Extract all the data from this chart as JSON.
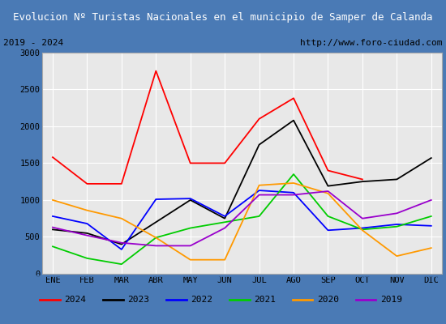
{
  "title": "Evolucion Nº Turistas Nacionales en el municipio de Samper de Calanda",
  "subtitle_left": "2019 - 2024",
  "subtitle_right": "http://www.foro-ciudad.com",
  "months": [
    "ENE",
    "FEB",
    "MAR",
    "ABR",
    "MAY",
    "JUN",
    "JUL",
    "AGO",
    "SEP",
    "OCT",
    "NOV",
    "DIC"
  ],
  "series": {
    "2024": [
      1580,
      1220,
      1220,
      2750,
      1500,
      1500,
      2100,
      2380,
      1400,
      1280,
      null,
      null
    ],
    "2023": [
      600,
      550,
      400,
      700,
      1000,
      750,
      1750,
      2080,
      1190,
      1250,
      1280,
      1570
    ],
    "2022": [
      780,
      680,
      330,
      1010,
      1020,
      780,
      1130,
      1100,
      590,
      620,
      670,
      650
    ],
    "2021": [
      370,
      210,
      130,
      490,
      620,
      700,
      780,
      1350,
      780,
      600,
      640,
      780
    ],
    "2020": [
      1000,
      860,
      750,
      490,
      190,
      190,
      1200,
      1230,
      1090,
      590,
      240,
      350
    ],
    "2019": [
      630,
      520,
      420,
      380,
      380,
      620,
      1070,
      1070,
      1120,
      750,
      820,
      1000
    ]
  },
  "colors": {
    "2024": "#ff0000",
    "2023": "#000000",
    "2022": "#0000ff",
    "2021": "#00cc00",
    "2020": "#ff9900",
    "2019": "#9900cc"
  },
  "ylim": [
    0,
    3000
  ],
  "yticks": [
    0,
    500,
    1000,
    1500,
    2000,
    2500,
    3000
  ],
  "title_bg_color": "#4a7ab5",
  "title_text_color": "#ffffff",
  "plot_bg_color": "#e8e8e8",
  "grid_color": "#ffffff",
  "border_color": "#4a7ab5",
  "subtitle_bg_color": "#ffffff",
  "fig_bg_color": "#4a7ab5"
}
